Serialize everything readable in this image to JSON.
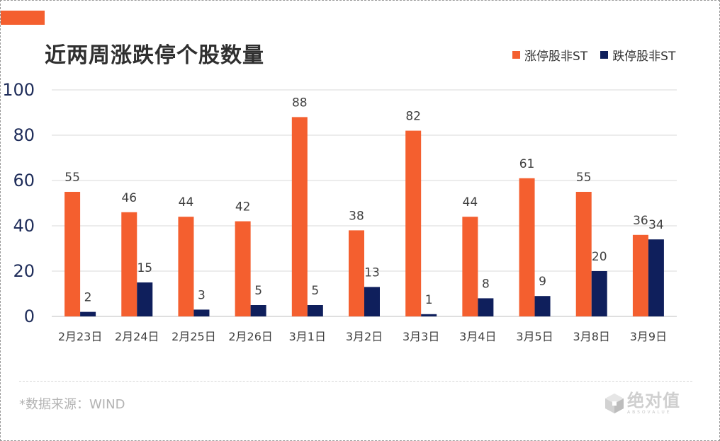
{
  "title": "近两周涨跌停个股数量",
  "source": "*数据来源：WIND",
  "logo": {
    "name": "绝对值",
    "sub": "ABSOVALUE"
  },
  "colors": {
    "accent": "#F45F2F",
    "series1": "#F45F2F",
    "series2": "#0F1F5C"
  },
  "chart_data": {
    "type": "bar",
    "title": "近两周涨跌停个股数量",
    "categories": [
      "2月23日",
      "2月24日",
      "2月25日",
      "2月26日",
      "3月1日",
      "3月2日",
      "3月3日",
      "3月4日",
      "3月5日",
      "3月8日",
      "3月9日"
    ],
    "series": [
      {
        "name": "涨停股非ST",
        "color": "#F45F2F",
        "values": [
          55,
          46,
          44,
          42,
          88,
          38,
          82,
          44,
          61,
          55,
          36
        ]
      },
      {
        "name": "跌停股非ST",
        "color": "#0F1F5C",
        "values": [
          2,
          15,
          3,
          5,
          5,
          13,
          1,
          8,
          9,
          20,
          34
        ]
      }
    ],
    "ylim": [
      0,
      100
    ],
    "yticks": [
      0,
      20,
      40,
      60,
      80,
      100
    ],
    "grid": true,
    "legend_position": "top-right"
  }
}
